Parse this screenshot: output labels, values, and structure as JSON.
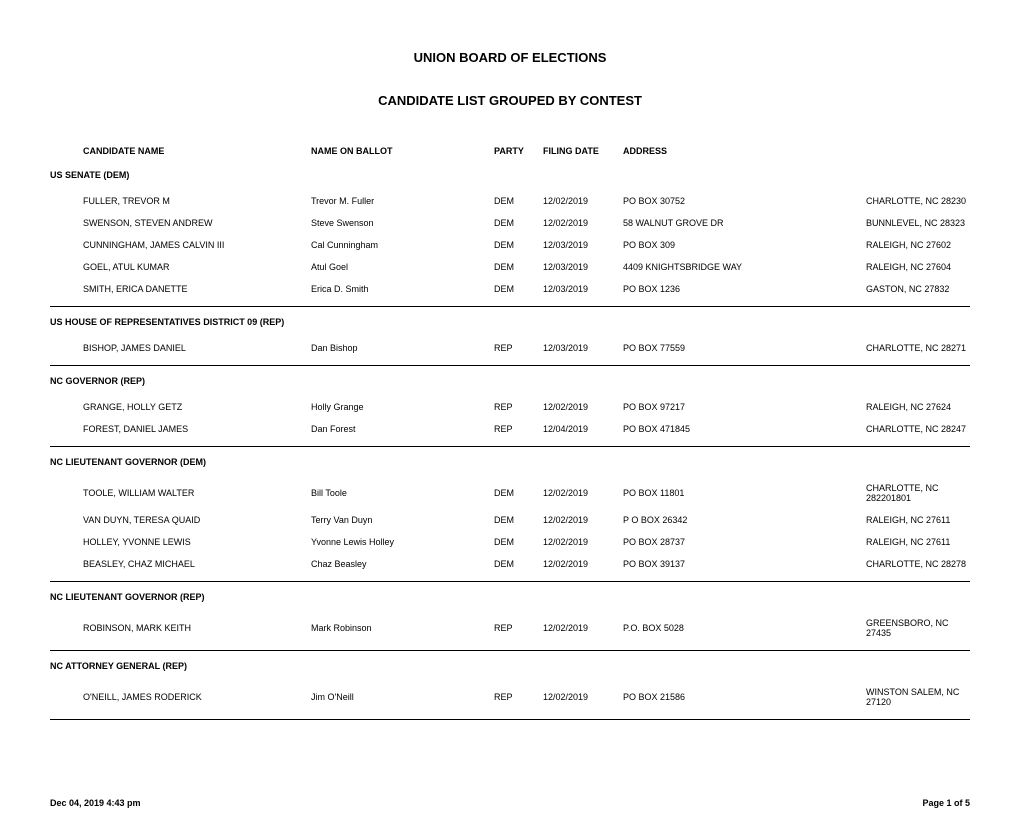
{
  "title1": "UNION BOARD OF ELECTIONS",
  "title2": "CANDIDATE LIST GROUPED BY CONTEST",
  "columns": {
    "name": "CANDIDATE NAME",
    "ballot": "NAME ON BALLOT",
    "party": "PARTY",
    "filing": "FILING DATE",
    "address": "ADDRESS"
  },
  "contests": [
    {
      "header": "US SENATE (DEM)",
      "candidates": [
        {
          "name": "FULLER, TREVOR M",
          "ballot": "Trevor M. Fuller",
          "party": "DEM",
          "filing": "12/02/2019",
          "addr1": "PO BOX 30752",
          "addr2": "CHARLOTTE, NC 28230"
        },
        {
          "name": "SWENSON, STEVEN ANDREW",
          "ballot": "Steve Swenson",
          "party": "DEM",
          "filing": "12/02/2019",
          "addr1": "58 WALNUT GROVE DR",
          "addr2": "BUNNLEVEL, NC 28323"
        },
        {
          "name": "CUNNINGHAM, JAMES CALVIN III",
          "ballot": "Cal Cunningham",
          "party": "DEM",
          "filing": "12/03/2019",
          "addr1": "PO BOX 309",
          "addr2": "RALEIGH, NC 27602"
        },
        {
          "name": "GOEL, ATUL KUMAR",
          "ballot": "Atul Goel",
          "party": "DEM",
          "filing": "12/03/2019",
          "addr1": "4409 KNIGHTSBRIDGE WAY",
          "addr2": "RALEIGH, NC 27604"
        },
        {
          "name": "SMITH, ERICA DANETTE",
          "ballot": "Erica D. Smith",
          "party": "DEM",
          "filing": "12/03/2019",
          "addr1": "PO BOX 1236",
          "addr2": "GASTON, NC 27832"
        }
      ]
    },
    {
      "header": "US HOUSE OF REPRESENTATIVES DISTRICT 09 (REP)",
      "candidates": [
        {
          "name": "BISHOP, JAMES DANIEL",
          "ballot": "Dan Bishop",
          "party": "REP",
          "filing": "12/03/2019",
          "addr1": "PO BOX 77559",
          "addr2": "CHARLOTTE, NC 28271"
        }
      ]
    },
    {
      "header": "NC GOVERNOR (REP)",
      "candidates": [
        {
          "name": "GRANGE, HOLLY GETZ",
          "ballot": "Holly Grange",
          "party": "REP",
          "filing": "12/02/2019",
          "addr1": "PO BOX 97217",
          "addr2": "RALEIGH, NC 27624"
        },
        {
          "name": "FOREST, DANIEL JAMES",
          "ballot": "Dan Forest",
          "party": "REP",
          "filing": "12/04/2019",
          "addr1": "PO BOX 471845",
          "addr2": "CHARLOTTE, NC 28247"
        }
      ]
    },
    {
      "header": "NC LIEUTENANT GOVERNOR (DEM)",
      "candidates": [
        {
          "name": "TOOLE, WILLIAM WALTER",
          "ballot": "Bill Toole",
          "party": "DEM",
          "filing": "12/02/2019",
          "addr1": "PO BOX 11801",
          "addr2": "CHARLOTTE, NC 282201801"
        },
        {
          "name": "VAN DUYN, TERESA QUAID",
          "ballot": "Terry Van Duyn",
          "party": "DEM",
          "filing": "12/02/2019",
          "addr1": "P O BOX 26342",
          "addr2": "RALEIGH, NC 27611"
        },
        {
          "name": "HOLLEY, YVONNE LEWIS",
          "ballot": "Yvonne Lewis Holley",
          "party": "DEM",
          "filing": "12/02/2019",
          "addr1": "PO BOX 28737",
          "addr2": "RALEIGH, NC 27611"
        },
        {
          "name": "BEASLEY, CHAZ MICHAEL",
          "ballot": "Chaz Beasley",
          "party": "DEM",
          "filing": "12/02/2019",
          "addr1": "PO BOX 39137",
          "addr2": "CHARLOTTE, NC 28278"
        }
      ]
    },
    {
      "header": "NC LIEUTENANT GOVERNOR (REP)",
      "candidates": [
        {
          "name": "ROBINSON, MARK KEITH",
          "ballot": "Mark Robinson",
          "party": "REP",
          "filing": "12/02/2019",
          "addr1": "P.O. BOX 5028",
          "addr2": "GREENSBORO, NC 27435"
        }
      ]
    },
    {
      "header": "NC ATTORNEY GENERAL (REP)",
      "candidates": [
        {
          "name": "O'NEILL, JAMES RODERICK",
          "ballot": "Jim O'Neill",
          "party": "REP",
          "filing": "12/02/2019",
          "addr1": "PO BOX 21586",
          "addr2": "WINSTON SALEM, NC 27120"
        }
      ]
    }
  ],
  "footer": {
    "timestamp": "Dec 04, 2019   4:43 pm",
    "page": "Page 1 of 5"
  }
}
